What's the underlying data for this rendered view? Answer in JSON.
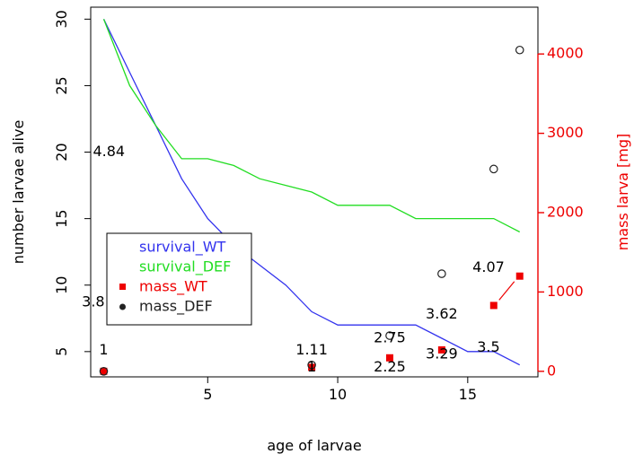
{
  "chart_data": {
    "type": "line",
    "title": "",
    "xlabel": "age of larvae",
    "ylabel": "number larvae alive",
    "y2label": "mass larva [mg]",
    "xlim": [
      0.5,
      17.7
    ],
    "ylim": [
      3.1,
      30.9
    ],
    "y2lim": [
      -70,
      4590
    ],
    "xticks": [
      "5",
      "10",
      "15"
    ],
    "yticks": [
      "5",
      "10",
      "15",
      "20",
      "25",
      "30"
    ],
    "y2ticks": [
      "0",
      "1000",
      "2000",
      "3000",
      "4000"
    ],
    "grid": false,
    "legend_position": "bottom-left",
    "colors": {
      "survival_WT": "#3333ee",
      "survival_DEF": "#22dd22",
      "mass_WT": "#ee0000",
      "mass_DEF": "#222222",
      "right_axis": "#ee0000"
    },
    "series": [
      {
        "name": "survival_WT",
        "kind": "line",
        "axis": "left",
        "x": [
          1,
          2,
          3,
          4,
          5,
          6,
          7,
          8,
          9,
          10,
          11,
          12,
          13,
          14,
          15,
          16,
          17
        ],
        "y": [
          30,
          26,
          22,
          18,
          15,
          13,
          11.5,
          10,
          8,
          7,
          7,
          7,
          7,
          6,
          5,
          5,
          4
        ]
      },
      {
        "name": "survival_DEF",
        "kind": "line",
        "axis": "left",
        "x": [
          1,
          2,
          3,
          4,
          5,
          6,
          7,
          8,
          9,
          10,
          11,
          12,
          13,
          14,
          15,
          16,
          17
        ],
        "y": [
          30,
          25,
          22,
          19.5,
          19.5,
          19,
          18,
          17.5,
          17,
          16,
          16,
          16,
          15,
          15,
          15,
          15,
          14
        ]
      },
      {
        "name": "mass_WT",
        "kind": "points",
        "marker": "filled-square",
        "axis": "right",
        "x": [
          1,
          9,
          12,
          14,
          16,
          17
        ],
        "y": [
          0,
          50,
          170,
          270,
          830,
          1200
        ]
      },
      {
        "name": "mass_DEF",
        "kind": "points",
        "marker": "open-circle",
        "axis": "right",
        "x": [
          1,
          9,
          12,
          14,
          16,
          17
        ],
        "y": [
          0,
          80,
          450,
          1230,
          2550,
          4050
        ]
      }
    ],
    "annotations": [
      {
        "text": "4.84",
        "x": 1.2,
        "y": 20
      },
      {
        "text": "3.8",
        "x": 0.6,
        "y": 8.7
      },
      {
        "text": "1",
        "x": 1.0,
        "y": 5.1
      },
      {
        "text": "1.11",
        "x": 9.0,
        "y": 5.1
      },
      {
        "text": "1",
        "x": 9.0,
        "y": 3.8
      },
      {
        "text": "2.75",
        "x": 12.0,
        "y": 6.0
      },
      {
        "text": "2.25",
        "x": 12.0,
        "y": 3.8
      },
      {
        "text": "3.62",
        "x": 14.0,
        "y": 7.8
      },
      {
        "text": "3.29",
        "x": 14.0,
        "y": 4.8
      },
      {
        "text": "3.5",
        "x": 15.8,
        "y": 5.3
      },
      {
        "text": "4.07",
        "x": 15.8,
        "y": 11.3
      }
    ]
  }
}
